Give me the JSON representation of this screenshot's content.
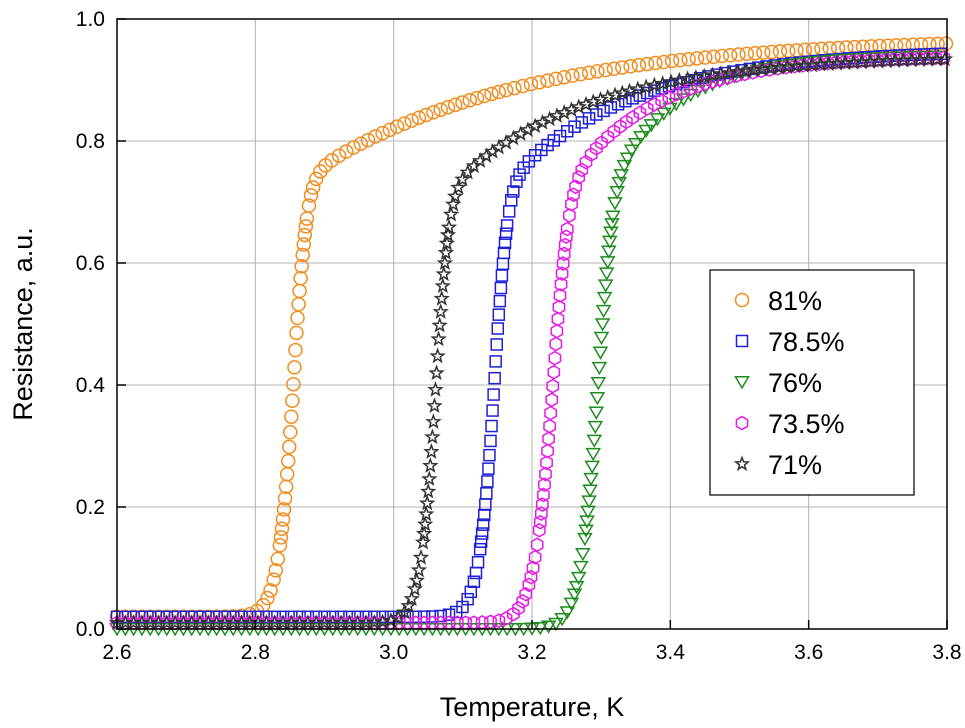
{
  "chart_data": {
    "type": "scatter",
    "title": "",
    "xlabel": "Temperature, K",
    "ylabel": "Resistance, a.u.",
    "xlim": [
      2.6,
      3.8
    ],
    "ylim": [
      0.0,
      1.0
    ],
    "xticks": [
      "2.6",
      "2.8",
      "3.0",
      "3.2",
      "3.4",
      "3.6",
      "3.8"
    ],
    "yticks": [
      "0.0",
      "0.2",
      "0.4",
      "0.6",
      "0.8",
      "1.0"
    ],
    "grid": true,
    "legend_position": "right",
    "series": [
      {
        "name": "81%",
        "marker": "circle",
        "color": "#F28C1E",
        "Tc": 2.86,
        "width": 0.025,
        "r0": 0.02,
        "top": 0.97,
        "tail": 0.9
      },
      {
        "name": "78.5%",
        "marker": "square",
        "color": "#1F1FD6",
        "Tc": 3.15,
        "width": 0.025,
        "r0": 0.02,
        "top": 0.95,
        "tail": 0.55
      },
      {
        "name": "76%",
        "marker": "triangle-down",
        "color": "#1E8C1E",
        "Tc": 3.3,
        "width": 0.028,
        "r0": 0.0,
        "top": 0.94,
        "tail": 0.3
      },
      {
        "name": "73.5%",
        "marker": "hexagon",
        "color": "#E619E6",
        "Tc": 3.235,
        "width": 0.03,
        "r0": 0.01,
        "top": 0.94,
        "tail": 0.4
      },
      {
        "name": "71%",
        "marker": "star",
        "color": "#333333",
        "Tc": 3.065,
        "width": 0.025,
        "r0": 0.01,
        "top": 0.94,
        "tail": 0.6
      }
    ]
  }
}
